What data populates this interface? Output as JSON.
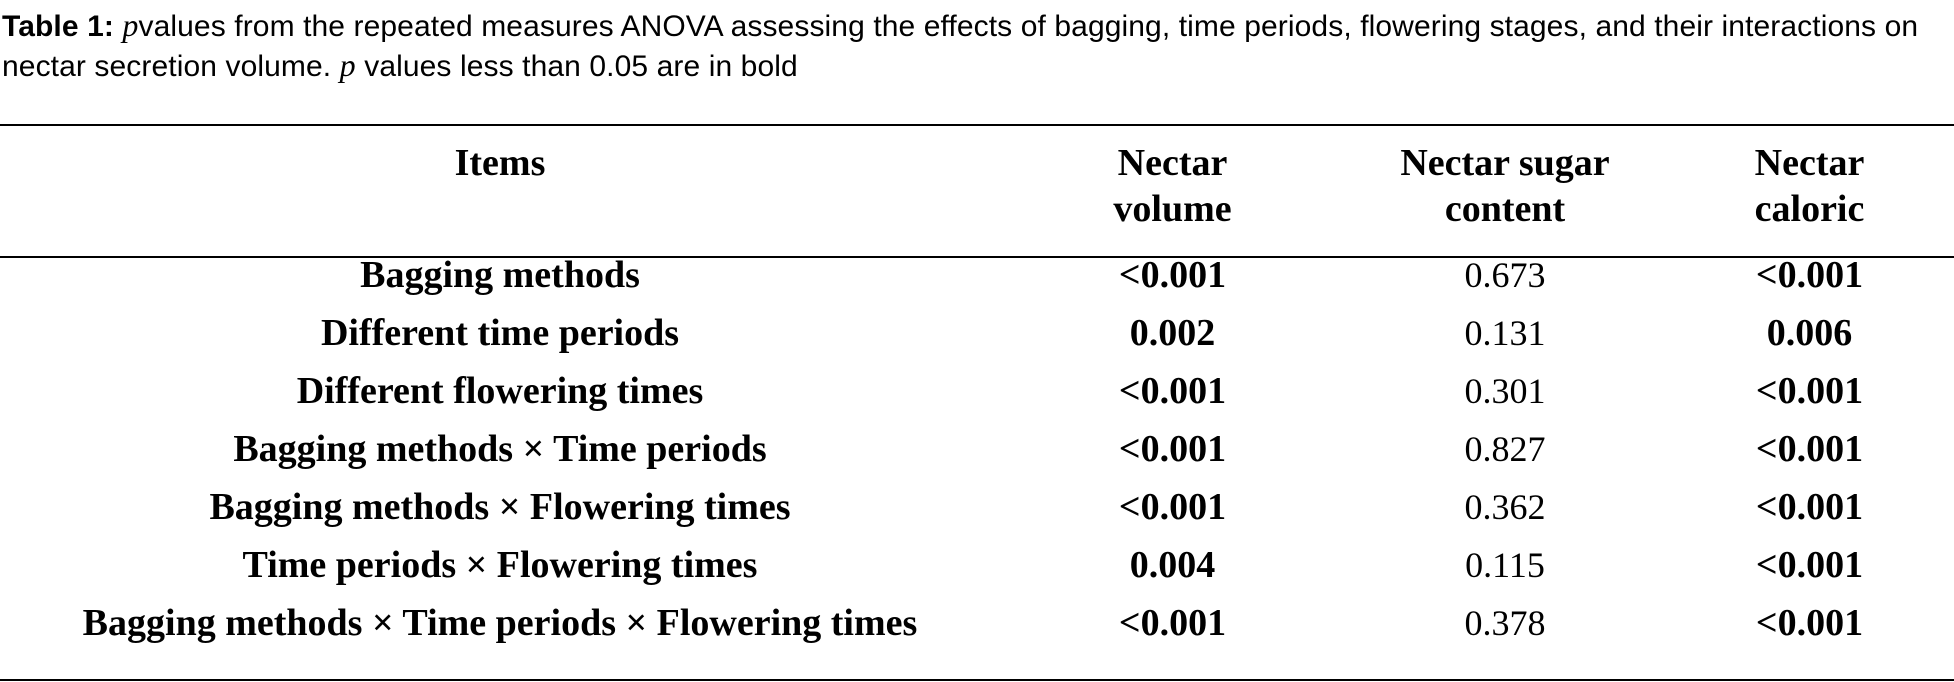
{
  "caption": {
    "label": "Table 1:",
    "p_letter": "p",
    "text_1": "values from the repeated measures ANOVA assessing the effects of bagging, time periods, flowering stages, and their interactions on nectar secretion volume.",
    "p_letter_2": "p",
    "text_2": "values less than 0.05 are in bold"
  },
  "table": {
    "headers": {
      "items": "Items",
      "volume_line1": "Nectar",
      "volume_line2": "volume",
      "sugar_line1": "Nectar sugar",
      "sugar_line2": "content",
      "caloric_line1": "Nectar",
      "caloric_line2": "caloric"
    },
    "rows": [
      {
        "item": "Bagging methods",
        "volume": "<0.001",
        "sugar": "0.673",
        "caloric": "<0.001"
      },
      {
        "item": "Different time periods",
        "volume": "0.002",
        "sugar": "0.131",
        "caloric": "0.006"
      },
      {
        "item": "Different flowering times",
        "volume": "<0.001",
        "sugar": "0.301",
        "caloric": "<0.001"
      },
      {
        "item": "Bagging methods × Time periods",
        "volume": "<0.001",
        "sugar": "0.827",
        "caloric": "<0.001"
      },
      {
        "item": "Bagging methods × Flowering times",
        "volume": "<0.001",
        "sugar": "0.362",
        "caloric": "<0.001"
      },
      {
        "item": "Time periods × Flowering times",
        "volume": "0.004",
        "sugar": "0.115",
        "caloric": "<0.001"
      },
      {
        "item": "Bagging methods × Time periods × Flowering times",
        "volume": "<0.001",
        "sugar": "0.378",
        "caloric": "<0.001"
      }
    ]
  }
}
